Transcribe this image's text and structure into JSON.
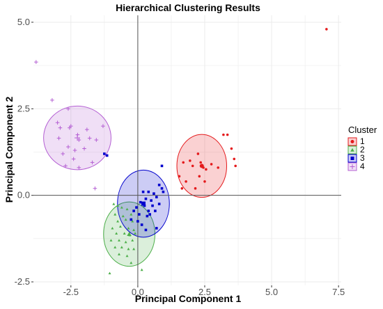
{
  "chart_data": {
    "type": "scatter",
    "title": "Hierarchical Clustering Results",
    "xlabel": "Principal Component 1",
    "ylabel": "Principal Component 2",
    "xlim": [
      -3.9,
      7.6
    ],
    "ylim": [
      -2.6,
      5.2
    ],
    "xticks": [
      -2.5,
      0.0,
      2.5,
      5.0,
      7.5
    ],
    "xtick_labels": [
      "-2.5",
      "0.0",
      "2.5",
      "5.0",
      "7.5"
    ],
    "yticks": [
      -2.5,
      0.0,
      2.5,
      5.0
    ],
    "ytick_labels": [
      "-2.5",
      "0.0",
      "2.5",
      "5.0"
    ],
    "grid": true,
    "reference_lines": {
      "x": 0,
      "y": 0
    },
    "legend": {
      "title": "Cluster",
      "position": "right"
    },
    "series": [
      {
        "name": "1",
        "color": "#e41a1c",
        "marker": "circle",
        "ellipse": {
          "cx": 2.39,
          "cy": 0.85,
          "rx": 0.93,
          "ry": 0.91
        },
        "points": [
          [
            7.05,
            4.8
          ],
          [
            3.2,
            1.75
          ],
          [
            3.35,
            1.75
          ],
          [
            3.5,
            1.35
          ],
          [
            3.6,
            1.05
          ],
          [
            3.65,
            0.85
          ],
          [
            2.25,
            1.2
          ],
          [
            1.95,
            1.0
          ],
          [
            1.7,
            0.95
          ],
          [
            2.35,
            0.95
          ],
          [
            2.05,
            0.85
          ],
          [
            2.4,
            0.87
          ],
          [
            2.75,
            0.9
          ],
          [
            2.45,
            0.8
          ],
          [
            3.0,
            0.8
          ],
          [
            2.55,
            0.75
          ],
          [
            1.55,
            0.55
          ],
          [
            2.3,
            0.55
          ],
          [
            1.8,
            0.4
          ],
          [
            2.5,
            0.4
          ],
          [
            1.65,
            0.2
          ],
          [
            2.15,
            0.2
          ]
        ]
      },
      {
        "name": "2",
        "color": "#4daf4a",
        "marker": "triangle",
        "ellipse": {
          "cx": -0.32,
          "cy": -1.12,
          "rx": 0.96,
          "ry": 0.93
        },
        "points": [
          [
            -0.9,
            -0.25
          ],
          [
            -0.75,
            -0.3
          ],
          [
            -0.6,
            -0.35
          ],
          [
            -0.4,
            -0.4
          ],
          [
            -0.85,
            -0.55
          ],
          [
            -0.55,
            -0.6
          ],
          [
            -0.25,
            -0.55
          ],
          [
            -0.75,
            -0.75
          ],
          [
            -0.45,
            -0.7
          ],
          [
            -0.2,
            -0.75
          ],
          [
            -0.95,
            -0.95
          ],
          [
            -0.65,
            -0.9
          ],
          [
            -0.35,
            -0.95
          ],
          [
            -0.15,
            -1.0
          ],
          [
            -0.8,
            -1.1
          ],
          [
            -0.5,
            -1.1
          ],
          [
            -0.3,
            -1.15
          ],
          [
            -0.1,
            -1.1
          ],
          [
            -1.0,
            -1.3
          ],
          [
            -0.7,
            -1.3
          ],
          [
            -0.45,
            -1.35
          ],
          [
            -0.2,
            -1.3
          ],
          [
            -0.85,
            -1.5
          ],
          [
            -0.6,
            -1.5
          ],
          [
            -0.35,
            -1.55
          ],
          [
            -0.15,
            -1.55
          ],
          [
            -0.7,
            -1.7
          ],
          [
            -0.4,
            -1.75
          ],
          [
            -0.25,
            -1.95
          ],
          [
            -1.05,
            -2.25
          ],
          [
            0.15,
            -2.15
          ]
        ]
      },
      {
        "name": "3",
        "color": "#0000cd",
        "marker": "square",
        "ellipse": {
          "cx": 0.21,
          "cy": -0.24,
          "rx": 0.97,
          "ry": 0.97
        },
        "points": [
          [
            -1.25,
            1.2
          ],
          [
            -1.15,
            1.15
          ],
          [
            0.9,
            0.85
          ],
          [
            0.8,
            0.3
          ],
          [
            0.9,
            0.2
          ],
          [
            0.95,
            0.1
          ],
          [
            0.2,
            0.1
          ],
          [
            0.4,
            0.1
          ],
          [
            0.6,
            0.05
          ],
          [
            0.7,
            -0.05
          ],
          [
            0.3,
            -0.1
          ],
          [
            0.5,
            -0.15
          ],
          [
            0.1,
            -0.2
          ],
          [
            0.8,
            -0.25
          ],
          [
            0.25,
            -0.3
          ],
          [
            0.55,
            -0.3
          ],
          [
            -0.05,
            -0.35
          ],
          [
            0.4,
            -0.45
          ],
          [
            0.65,
            -0.45
          ],
          [
            0.05,
            -0.55
          ],
          [
            -0.15,
            -0.45
          ],
          [
            0.35,
            -0.6
          ],
          [
            0.45,
            -0.55
          ],
          [
            -0.25,
            -0.7
          ],
          [
            0.0,
            -0.75
          ],
          [
            0.15,
            -0.85
          ],
          [
            0.7,
            -0.95
          ],
          [
            0.3,
            -1.0
          ]
        ]
      },
      {
        "name": "4",
        "color": "#b45fd3",
        "marker": "plus",
        "ellipse": {
          "cx": -2.26,
          "cy": 1.66,
          "rx": 1.26,
          "ry": 0.92
        },
        "points": [
          [
            -3.8,
            3.85
          ],
          [
            -3.2,
            2.75
          ],
          [
            -2.6,
            2.5
          ],
          [
            -3.0,
            2.1
          ],
          [
            -2.5,
            2.0
          ],
          [
            -1.3,
            2.0
          ],
          [
            -2.9,
            1.95
          ],
          [
            -2.55,
            1.95
          ],
          [
            -2.25,
            1.75
          ],
          [
            -1.9,
            1.9
          ],
          [
            -2.95,
            1.65
          ],
          [
            -2.2,
            1.6
          ],
          [
            -1.8,
            1.65
          ],
          [
            -1.55,
            1.6
          ],
          [
            -2.6,
            1.4
          ],
          [
            -2.35,
            1.3
          ],
          [
            -2.0,
            1.35
          ],
          [
            -2.8,
            1.2
          ],
          [
            -2.4,
            1.05
          ],
          [
            -1.7,
            0.95
          ],
          [
            -2.7,
            0.85
          ],
          [
            -2.2,
            0.8
          ],
          [
            -1.6,
            0.2
          ]
        ]
      }
    ]
  }
}
